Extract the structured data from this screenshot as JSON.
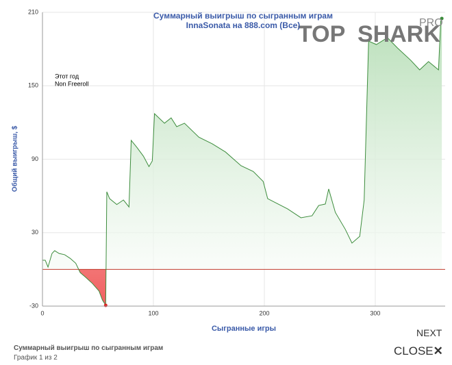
{
  "chart_data": {
    "type": "line",
    "title": "Суммарный выигрыш по сыгранным играм",
    "subtitle": "InnaSonata на 888.com (Все)",
    "annotations": [
      "Этот год",
      "Non Freeroll"
    ],
    "x_label": "Сыгранные игры",
    "y_label": "Общий выигрыш, $",
    "x": [
      0,
      2.5,
      5,
      8.6,
      11,
      15,
      20,
      25,
      30,
      34,
      39,
      45,
      51,
      54,
      57,
      58,
      60.5,
      67,
      73,
      78,
      80,
      85,
      91,
      96,
      99,
      101,
      110,
      116,
      121,
      128,
      141,
      153,
      165,
      179,
      190,
      199,
      203,
      209,
      221,
      233,
      243,
      249,
      255,
      258,
      264,
      273,
      279,
      286,
      290,
      294,
      301,
      311,
      320,
      332,
      340,
      348,
      357,
      359,
      360
    ],
    "values": [
      7.5,
      7.5,
      1.9,
      13,
      15.3,
      13,
      12,
      9,
      5,
      -2.6,
      -6.5,
      -11.5,
      -17.7,
      -25,
      -29.4,
      63.4,
      57.8,
      53,
      56.7,
      51,
      105.4,
      99.8,
      92.5,
      84,
      88.6,
      127.2,
      119.4,
      123.8,
      116.6,
      119.4,
      108,
      102.6,
      95.9,
      84.7,
      80,
      71.8,
      57.8,
      55,
      49.4,
      42.2,
      43.8,
      52.2,
      53.4,
      65.7,
      46.6,
      32.7,
      21.5,
      27,
      56.7,
      186.5,
      183.7,
      189.3,
      180.9,
      170.8,
      163,
      169.8,
      163,
      202.7,
      205
    ],
    "color": "#3c8c3c",
    "negative_color": "#e02020",
    "zero_line_color": "#c0392b",
    "xlim": [
      0,
      363
    ],
    "ylim": [
      -30,
      210
    ],
    "xticks": [
      0,
      100,
      200,
      300
    ],
    "yticks": [
      -30,
      30,
      90,
      150,
      210
    ],
    "grid": true
  },
  "ui": {
    "logo_a": "TOP",
    "logo_b": "SHARK",
    "logo_badge": "PRO",
    "next": "NEXT",
    "close": "CLOSE",
    "caption": "Суммарный выигрыш по сыгранным играм",
    "counter": "График 1 из 2"
  }
}
